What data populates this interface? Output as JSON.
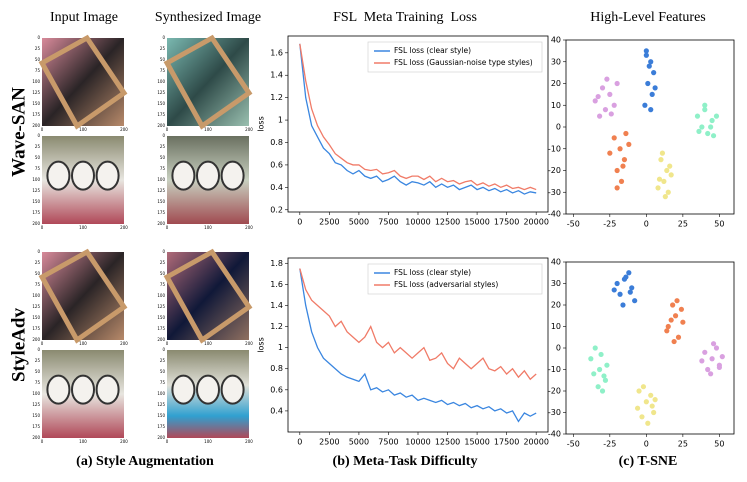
{
  "headers": {
    "input": "Input Image",
    "synth": "Synthesized Image",
    "loss": "FSL  Meta Training  Loss",
    "features": "High-Level Features"
  },
  "rows": [
    "Wave-SAN",
    "StyleAdv"
  ],
  "captions": [
    "(a) Style Augmentation",
    "(b) Meta-Task Difficulty",
    "(c) T-SNE"
  ],
  "image_axis": {
    "yticks": [
      0,
      25,
      50,
      75,
      100,
      125,
      150,
      175,
      200
    ],
    "xticks": [
      0,
      100,
      200
    ]
  },
  "chart_data": [
    {
      "type": "line",
      "ylabel": "loss",
      "legend": "upper right",
      "x": [
        0,
        500,
        1000,
        1500,
        2000,
        2500,
        3000,
        3500,
        4000,
        4500,
        5000,
        5500,
        6000,
        6500,
        7000,
        7500,
        8000,
        8500,
        9000,
        9500,
        10000,
        10500,
        11000,
        11500,
        12000,
        12500,
        13000,
        13500,
        14000,
        14500,
        15000,
        15500,
        16000,
        16500,
        17000,
        17500,
        18000,
        18500,
        19000,
        19500,
        20000
      ],
      "xlim": [
        -1000,
        21000
      ],
      "xticks": [
        0,
        2500,
        5000,
        7500,
        10000,
        12500,
        15000,
        17500,
        20000
      ],
      "ylim": [
        0.18,
        1.75
      ],
      "yticks": [
        0.2,
        0.4,
        0.6,
        0.8,
        1.0,
        1.2,
        1.4,
        1.6
      ],
      "series": [
        {
          "name": "FSL loss (clear style)",
          "color": "#3a86e0",
          "values": [
            1.68,
            1.2,
            0.95,
            0.85,
            0.75,
            0.7,
            0.62,
            0.6,
            0.55,
            0.52,
            0.55,
            0.5,
            0.48,
            0.5,
            0.45,
            0.47,
            0.5,
            0.45,
            0.42,
            0.45,
            0.44,
            0.42,
            0.45,
            0.4,
            0.43,
            0.4,
            0.42,
            0.38,
            0.4,
            0.42,
            0.38,
            0.4,
            0.37,
            0.39,
            0.36,
            0.38,
            0.35,
            0.37,
            0.34,
            0.36,
            0.35
          ]
        },
        {
          "name": "FSL loss (Gaussian-noise type styles)",
          "color": "#f07b68",
          "values": [
            1.68,
            1.35,
            1.1,
            0.95,
            0.85,
            0.78,
            0.7,
            0.66,
            0.62,
            0.6,
            0.6,
            0.56,
            0.55,
            0.56,
            0.52,
            0.53,
            0.55,
            0.5,
            0.48,
            0.5,
            0.5,
            0.47,
            0.5,
            0.45,
            0.48,
            0.45,
            0.46,
            0.43,
            0.45,
            0.46,
            0.42,
            0.44,
            0.41,
            0.43,
            0.4,
            0.42,
            0.39,
            0.4,
            0.38,
            0.4,
            0.38
          ]
        }
      ]
    },
    {
      "type": "line",
      "ylabel": "loss",
      "legend": "upper right",
      "x": [
        0,
        500,
        1000,
        1500,
        2000,
        2500,
        3000,
        3500,
        4000,
        4500,
        5000,
        5500,
        6000,
        6500,
        7000,
        7500,
        8000,
        8500,
        9000,
        9500,
        10000,
        10500,
        11000,
        11500,
        12000,
        12500,
        13000,
        13500,
        14000,
        14500,
        15000,
        15500,
        16000,
        16500,
        17000,
        17500,
        18000,
        18500,
        19000,
        19500,
        20000
      ],
      "xlim": [
        -1000,
        21000
      ],
      "xticks": [
        0,
        2500,
        5000,
        7500,
        10000,
        12500,
        15000,
        17500,
        20000
      ],
      "ylim": [
        0.2,
        1.85
      ],
      "yticks": [
        0.4,
        0.6,
        0.8,
        1.0,
        1.2,
        1.4,
        1.6,
        1.8
      ],
      "series": [
        {
          "name": "FSL loss (clear style)",
          "color": "#3a86e0",
          "values": [
            1.75,
            1.4,
            1.15,
            1.0,
            0.9,
            0.85,
            0.8,
            0.75,
            0.72,
            0.7,
            0.68,
            0.75,
            0.6,
            0.62,
            0.58,
            0.6,
            0.55,
            0.57,
            0.53,
            0.55,
            0.5,
            0.52,
            0.5,
            0.48,
            0.5,
            0.46,
            0.48,
            0.45,
            0.47,
            0.43,
            0.45,
            0.42,
            0.44,
            0.4,
            0.42,
            0.38,
            0.4,
            0.3,
            0.38,
            0.35,
            0.38
          ]
        },
        {
          "name": "FSL loss (adversarial styles)",
          "color": "#f07b68",
          "values": [
            1.75,
            1.55,
            1.45,
            1.4,
            1.35,
            1.3,
            1.2,
            1.25,
            1.15,
            1.1,
            1.05,
            1.1,
            1.2,
            1.05,
            1.0,
            1.05,
            0.95,
            1.0,
            0.95,
            0.9,
            0.95,
            1.0,
            0.88,
            0.9,
            0.95,
            0.85,
            0.8,
            0.9,
            0.85,
            0.8,
            0.85,
            0.9,
            0.8,
            0.78,
            0.82,
            0.75,
            0.8,
            0.72,
            0.78,
            0.7,
            0.75
          ]
        }
      ]
    },
    {
      "type": "scatter",
      "xlim": [
        -55,
        60
      ],
      "xticks": [
        -50,
        -25,
        0,
        25,
        50
      ],
      "ylim": [
        -40,
        40
      ],
      "yticks": [
        -40,
        -30,
        -20,
        -10,
        0,
        10,
        20,
        30,
        40
      ],
      "series": [
        {
          "color": "#d9a0e0",
          "x": [
            -35,
            -30,
            -25,
            -28,
            -22,
            -32,
            -20,
            -27,
            -33,
            -24
          ],
          "y": [
            12,
            18,
            15,
            8,
            10,
            5,
            20,
            22,
            14,
            6
          ]
        },
        {
          "color": "#3b7dd8",
          "x": [
            0,
            3,
            5,
            1,
            4,
            -1,
            2,
            6,
            3,
            0
          ],
          "y": [
            35,
            30,
            25,
            20,
            15,
            10,
            28,
            18,
            8,
            33
          ]
        },
        {
          "color": "#8ff0c8",
          "x": [
            35,
            40,
            45,
            38,
            42,
            48,
            36,
            44,
            40,
            46
          ],
          "y": [
            5,
            8,
            3,
            0,
            -3,
            5,
            -2,
            0,
            10,
            -4
          ]
        },
        {
          "color": "#f08050",
          "x": [
            -22,
            -18,
            -15,
            -20,
            -12,
            -25,
            -17,
            -14,
            -20,
            -16
          ],
          "y": [
            -5,
            -10,
            -15,
            -20,
            -8,
            -12,
            -25,
            -3,
            -28,
            -18
          ]
        },
        {
          "color": "#f0e68c",
          "x": [
            10,
            14,
            12,
            16,
            8,
            13,
            17,
            11,
            15,
            9
          ],
          "y": [
            -15,
            -20,
            -25,
            -18,
            -28,
            -32,
            -22,
            -12,
            -30,
            -24
          ]
        }
      ]
    },
    {
      "type": "scatter",
      "xlim": [
        -55,
        60
      ],
      "xticks": [
        -50,
        -25,
        0,
        25,
        50
      ],
      "ylim": [
        -40,
        40
      ],
      "yticks": [
        -40,
        -30,
        -20,
        -10,
        0,
        10,
        20,
        30,
        40
      ],
      "series": [
        {
          "color": "#3b7dd8",
          "x": [
            -20,
            -15,
            -10,
            -18,
            -12,
            -22,
            -8,
            -16,
            -14,
            -11
          ],
          "y": [
            30,
            32,
            28,
            25,
            35,
            27,
            22,
            20,
            33,
            26
          ]
        },
        {
          "color": "#f08050",
          "x": [
            15,
            20,
            25,
            18,
            22,
            14,
            24,
            19,
            21,
            17
          ],
          "y": [
            10,
            15,
            12,
            20,
            5,
            8,
            18,
            3,
            22,
            13
          ]
        },
        {
          "color": "#8ff0c8",
          "x": [
            -38,
            -32,
            -28,
            -35,
            -30,
            -36,
            -27,
            -33,
            -31,
            -29
          ],
          "y": [
            -5,
            -10,
            -15,
            0,
            -20,
            -12,
            -8,
            -18,
            -3,
            -13
          ]
        },
        {
          "color": "#f0e68c",
          "x": [
            -5,
            0,
            5,
            -3,
            3,
            -6,
            1,
            6,
            -2,
            4
          ],
          "y": [
            -20,
            -25,
            -30,
            -32,
            -22,
            -28,
            -35,
            -24,
            -18,
            -27
          ]
        },
        {
          "color": "#d9a0e0",
          "x": [
            40,
            45,
            50,
            42,
            48,
            44,
            52,
            38,
            46,
            50
          ],
          "y": [
            -2,
            -5,
            -8,
            -10,
            0,
            -12,
            -4,
            -6,
            2,
            -9
          ]
        }
      ]
    }
  ]
}
